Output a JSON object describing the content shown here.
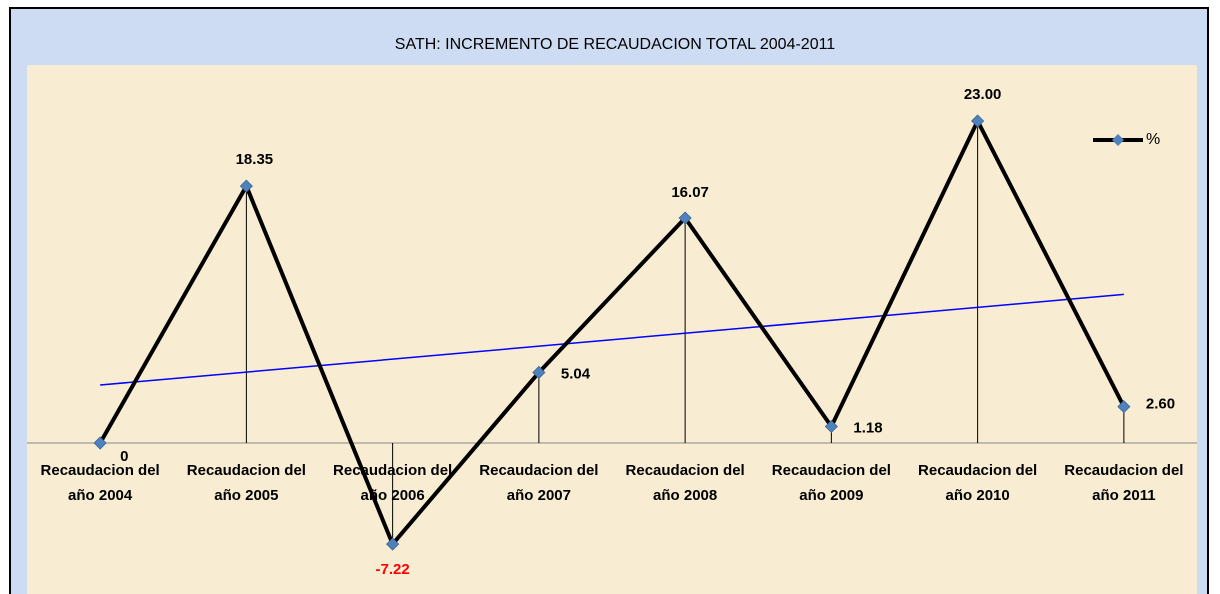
{
  "chart_data": {
    "type": "line",
    "title": "SATH: INCREMENTO DE RECAUDACION TOTAL 2004-2011",
    "categories": [
      "Recaudacion del año 2004",
      "Recaudacion del año 2005",
      "Recaudacion del año 2006",
      "Recaudacion del año 2007",
      "Recaudacion del año 2008",
      "Recaudacion del año 2009",
      "Recaudacion del año 2010",
      "Recaudacion del año 2011"
    ],
    "series": [
      {
        "name": "%",
        "color": "#000000",
        "marker_color": "#4f81bd",
        "values": [
          0,
          18.35,
          -7.22,
          5.04,
          16.07,
          1.18,
          23.0,
          2.6
        ],
        "value_labels": [
          "0",
          "18.35",
          "-7.22",
          "5.04",
          "16.07",
          "1.18",
          "23.00",
          "2.60"
        ]
      }
    ],
    "ylim": [
      -10,
      27
    ],
    "trendline": true,
    "trendline_color": "#0000ff",
    "drop_lines": true,
    "legend": "top-right"
  }
}
